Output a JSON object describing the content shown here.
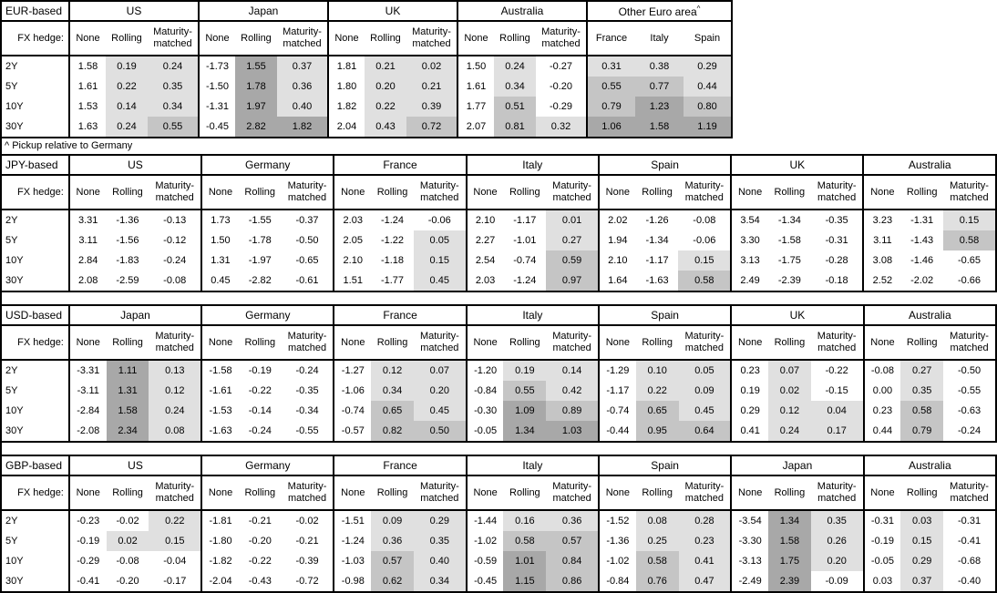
{
  "labels": {
    "fx_hedge": "FX hedge:",
    "sub_headers": [
      "None",
      "Rolling",
      "Maturity-matched"
    ],
    "tenors": [
      "2Y",
      "5Y",
      "10Y",
      "30Y"
    ],
    "footnote": "^ Pickup relative to Germany",
    "footnote_mark": "^"
  },
  "colors": {
    "shade_light": "#e0e0e0",
    "shade_medium": "#c5c5c5",
    "shade_dark": "#a8a8a8",
    "border": "#000000",
    "background": "#ffffff"
  },
  "shading_rule": {
    "applies_to": "Rolling, Maturity-matched and country pickup columns only",
    "light_min": 0,
    "medium_min": 0.5,
    "dark_min": 1.0
  },
  "tables": [
    {
      "base_label": "EUR-based",
      "groups": [
        {
          "name": "US",
          "rows": [
            [
              "1.58",
              "0.19",
              "0.24"
            ],
            [
              "1.61",
              "0.22",
              "0.35"
            ],
            [
              "1.53",
              "0.14",
              "0.34"
            ],
            [
              "1.63",
              "0.24",
              "0.55"
            ]
          ]
        },
        {
          "name": "Japan",
          "rows": [
            [
              "-1.73",
              "1.55",
              "0.37"
            ],
            [
              "-1.50",
              "1.78",
              "0.36"
            ],
            [
              "-1.31",
              "1.97",
              "0.40"
            ],
            [
              "-0.45",
              "2.82",
              "1.82"
            ]
          ]
        },
        {
          "name": "UK",
          "rows": [
            [
              "1.81",
              "0.21",
              "0.02"
            ],
            [
              "1.80",
              "0.20",
              "0.21"
            ],
            [
              "1.82",
              "0.22",
              "0.39"
            ],
            [
              "2.04",
              "0.43",
              "0.72"
            ]
          ]
        },
        {
          "name": "Australia",
          "rows": [
            [
              "1.50",
              "0.24",
              "-0.27"
            ],
            [
              "1.61",
              "0.34",
              "-0.20"
            ],
            [
              "1.77",
              "0.51",
              "-0.29"
            ],
            [
              "2.07",
              "0.81",
              "0.32"
            ]
          ]
        },
        {
          "name": "Other Euro area",
          "sup": "^",
          "columns": [
            "France",
            "Italy",
            "Spain"
          ],
          "rows": [
            [
              "0.31",
              "0.38",
              "0.29"
            ],
            [
              "0.55",
              "0.77",
              "0.44"
            ],
            [
              "0.79",
              "1.23",
              "0.80"
            ],
            [
              "1.06",
              "1.58",
              "1.19"
            ]
          ]
        }
      ]
    },
    {
      "base_label": "JPY-based",
      "groups": [
        {
          "name": "US",
          "rows": [
            [
              "3.31",
              "-1.36",
              "-0.13"
            ],
            [
              "3.11",
              "-1.56",
              "-0.12"
            ],
            [
              "2.84",
              "-1.83",
              "-0.24"
            ],
            [
              "2.08",
              "-2.59",
              "-0.08"
            ]
          ]
        },
        {
          "name": "Germany",
          "rows": [
            [
              "1.73",
              "-1.55",
              "-0.37"
            ],
            [
              "1.50",
              "-1.78",
              "-0.50"
            ],
            [
              "1.31",
              "-1.97",
              "-0.65"
            ],
            [
              "0.45",
              "-2.82",
              "-0.61"
            ]
          ]
        },
        {
          "name": "France",
          "rows": [
            [
              "2.03",
              "-1.24",
              "-0.06"
            ],
            [
              "2.05",
              "-1.22",
              "0.05"
            ],
            [
              "2.10",
              "-1.18",
              "0.15"
            ],
            [
              "1.51",
              "-1.77",
              "0.45"
            ]
          ]
        },
        {
          "name": "Italy",
          "rows": [
            [
              "2.10",
              "-1.17",
              "0.01"
            ],
            [
              "2.27",
              "-1.01",
              "0.27"
            ],
            [
              "2.54",
              "-0.74",
              "0.59"
            ],
            [
              "2.03",
              "-1.24",
              "0.97"
            ]
          ]
        },
        {
          "name": "Spain",
          "rows": [
            [
              "2.02",
              "-1.26",
              "-0.08"
            ],
            [
              "1.94",
              "-1.34",
              "-0.06"
            ],
            [
              "2.10",
              "-1.17",
              "0.15"
            ],
            [
              "1.64",
              "-1.63",
              "0.58"
            ]
          ]
        },
        {
          "name": "UK",
          "rows": [
            [
              "3.54",
              "-1.34",
              "-0.35"
            ],
            [
              "3.30",
              "-1.58",
              "-0.31"
            ],
            [
              "3.13",
              "-1.75",
              "-0.28"
            ],
            [
              "2.49",
              "-2.39",
              "-0.18"
            ]
          ]
        },
        {
          "name": "Australia",
          "rows": [
            [
              "3.23",
              "-1.31",
              "0.15"
            ],
            [
              "3.11",
              "-1.43",
              "0.58"
            ],
            [
              "3.08",
              "-1.46",
              "-0.65"
            ],
            [
              "2.52",
              "-2.02",
              "-0.66"
            ]
          ]
        }
      ]
    },
    {
      "base_label": "USD-based",
      "groups": [
        {
          "name": "Japan",
          "rows": [
            [
              "-3.31",
              "1.11",
              "0.13"
            ],
            [
              "-3.11",
              "1.31",
              "0.12"
            ],
            [
              "-2.84",
              "1.58",
              "0.24"
            ],
            [
              "-2.08",
              "2.34",
              "0.08"
            ]
          ]
        },
        {
          "name": "Germany",
          "rows": [
            [
              "-1.58",
              "-0.19",
              "-0.24"
            ],
            [
              "-1.61",
              "-0.22",
              "-0.35"
            ],
            [
              "-1.53",
              "-0.14",
              "-0.34"
            ],
            [
              "-1.63",
              "-0.24",
              "-0.55"
            ]
          ]
        },
        {
          "name": "France",
          "rows": [
            [
              "-1.27",
              "0.12",
              "0.07"
            ],
            [
              "-1.06",
              "0.34",
              "0.20"
            ],
            [
              "-0.74",
              "0.65",
              "0.45"
            ],
            [
              "-0.57",
              "0.82",
              "0.50"
            ]
          ]
        },
        {
          "name": "Italy",
          "rows": [
            [
              "-1.20",
              "0.19",
              "0.14"
            ],
            [
              "-0.84",
              "0.55",
              "0.42"
            ],
            [
              "-0.30",
              "1.09",
              "0.89"
            ],
            [
              "-0.05",
              "1.34",
              "1.03"
            ]
          ]
        },
        {
          "name": "Spain",
          "rows": [
            [
              "-1.29",
              "0.10",
              "0.05"
            ],
            [
              "-1.17",
              "0.22",
              "0.09"
            ],
            [
              "-0.74",
              "0.65",
              "0.45"
            ],
            [
              "-0.44",
              "0.95",
              "0.64"
            ]
          ]
        },
        {
          "name": "UK",
          "rows": [
            [
              "0.23",
              "0.07",
              "-0.22"
            ],
            [
              "0.19",
              "0.02",
              "-0.15"
            ],
            [
              "0.29",
              "0.12",
              "0.04"
            ],
            [
              "0.41",
              "0.24",
              "0.17"
            ]
          ]
        },
        {
          "name": "Australia",
          "rows": [
            [
              "-0.08",
              "0.27",
              "-0.50"
            ],
            [
              "0.00",
              "0.35",
              "-0.55"
            ],
            [
              "0.23",
              "0.58",
              "-0.63"
            ],
            [
              "0.44",
              "0.79",
              "-0.24"
            ]
          ]
        }
      ]
    },
    {
      "base_label": "GBP-based",
      "groups": [
        {
          "name": "US",
          "rows": [
            [
              "-0.23",
              "-0.02",
              "0.22"
            ],
            [
              "-0.19",
              "0.02",
              "0.15"
            ],
            [
              "-0.29",
              "-0.08",
              "-0.04"
            ],
            [
              "-0.41",
              "-0.20",
              "-0.17"
            ]
          ]
        },
        {
          "name": "Germany",
          "rows": [
            [
              "-1.81",
              "-0.21",
              "-0.02"
            ],
            [
              "-1.80",
              "-0.20",
              "-0.21"
            ],
            [
              "-1.82",
              "-0.22",
              "-0.39"
            ],
            [
              "-2.04",
              "-0.43",
              "-0.72"
            ]
          ]
        },
        {
          "name": "France",
          "rows": [
            [
              "-1.51",
              "0.09",
              "0.29"
            ],
            [
              "-1.24",
              "0.36",
              "0.35"
            ],
            [
              "-1.03",
              "0.57",
              "0.40"
            ],
            [
              "-0.98",
              "0.62",
              "0.34"
            ]
          ]
        },
        {
          "name": "Italy",
          "rows": [
            [
              "-1.44",
              "0.16",
              "0.36"
            ],
            [
              "-1.02",
              "0.58",
              "0.57"
            ],
            [
              "-0.59",
              "1.01",
              "0.84"
            ],
            [
              "-0.45",
              "1.15",
              "0.86"
            ]
          ]
        },
        {
          "name": "Spain",
          "rows": [
            [
              "-1.52",
              "0.08",
              "0.28"
            ],
            [
              "-1.36",
              "0.25",
              "0.23"
            ],
            [
              "-1.02",
              "0.58",
              "0.41"
            ],
            [
              "-0.84",
              "0.76",
              "0.47"
            ]
          ]
        },
        {
          "name": "Japan",
          "rows": [
            [
              "-3.54",
              "1.34",
              "0.35"
            ],
            [
              "-3.30",
              "1.58",
              "0.26"
            ],
            [
              "-3.13",
              "1.75",
              "0.20"
            ],
            [
              "-2.49",
              "2.39",
              "-0.09"
            ]
          ]
        },
        {
          "name": "Australia",
          "rows": [
            [
              "-0.31",
              "0.03",
              "-0.31"
            ],
            [
              "-0.19",
              "0.15",
              "-0.41"
            ],
            [
              "-0.05",
              "0.29",
              "-0.68"
            ],
            [
              "0.03",
              "0.37",
              "-0.40"
            ]
          ]
        }
      ]
    }
  ]
}
